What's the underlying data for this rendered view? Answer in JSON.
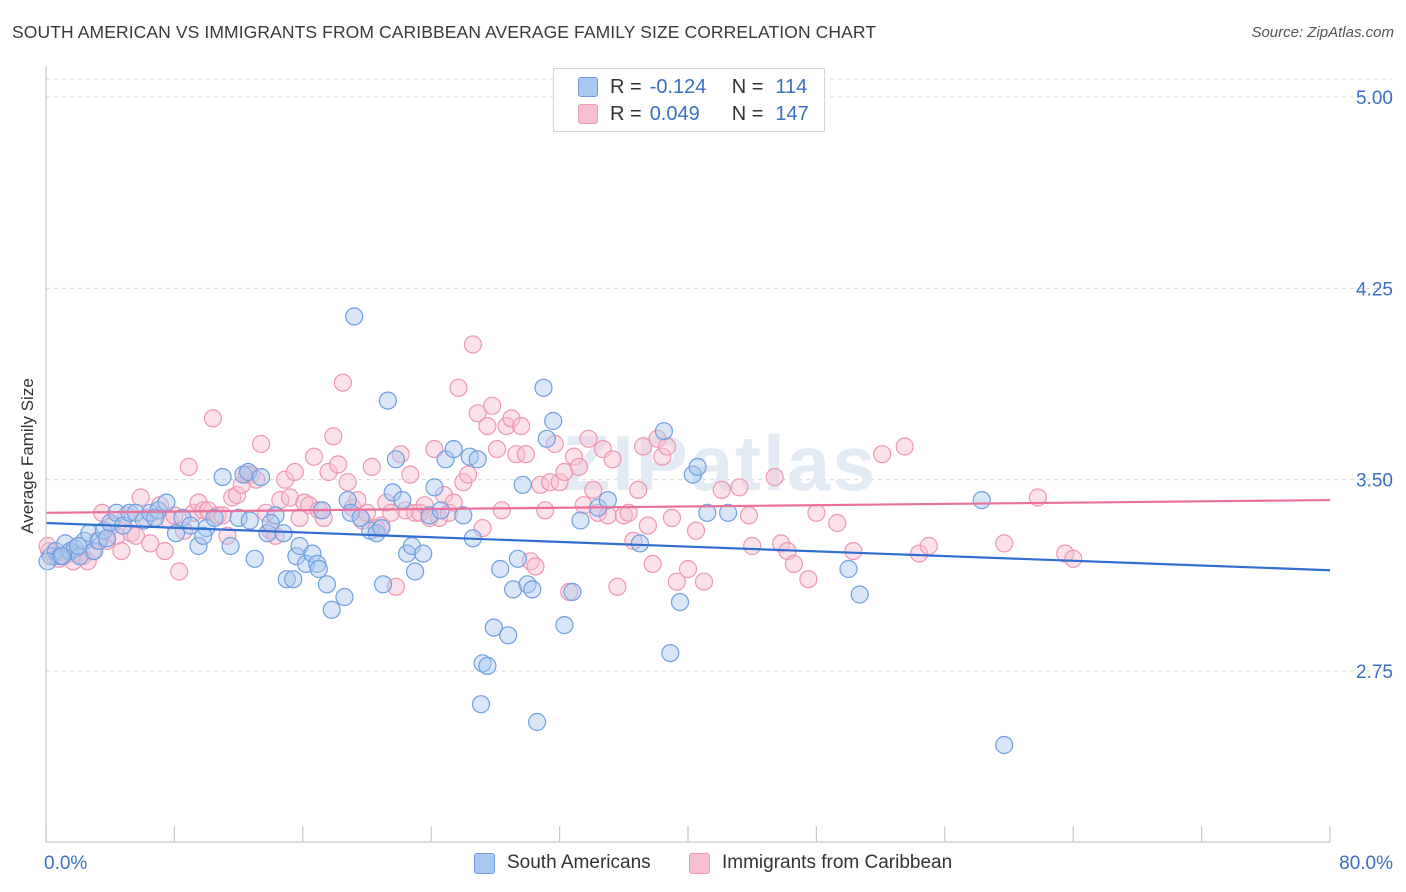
{
  "title": "SOUTH AMERICAN VS IMMIGRANTS FROM CARIBBEAN AVERAGE FAMILY SIZE CORRELATION CHART",
  "source": "Source: ZipAtlas.com",
  "watermark": "ZIPatlas",
  "legend": {
    "rows": [
      {
        "r_label": "R =",
        "r_value": "-0.124",
        "n_label": "N =",
        "n_value": "114"
      },
      {
        "r_label": "R =",
        "r_value": "0.049",
        "n_label": "N =",
        "n_value": "147"
      }
    ]
  },
  "bottom_legend": [
    "South Americans",
    "Immigrants from Caribbean"
  ],
  "colors": {
    "blue_fill": "#a9c8f0",
    "blue_stroke": "#6f9fe0",
    "blue_line": "#2f6fd0",
    "pink_fill": "#f7bfd0",
    "pink_stroke": "#ee97b3",
    "pink_line": "#e8709a",
    "axis_text": "#3a6fc4",
    "grid": "#d8d8d8"
  },
  "chart_data": {
    "type": "scatter",
    "title": "SOUTH AMERICAN VS IMMIGRANTS FROM CARIBBEAN AVERAGE FAMILY SIZE CORRELATION CHART",
    "xlabel": "",
    "ylabel": "Average Family Size",
    "xlim": [
      0,
      80
    ],
    "ylim": [
      2.0,
      5.05
    ],
    "x_tick_labels": [
      "0.0%",
      "80.0%"
    ],
    "y_ticks": [
      2.75,
      3.5,
      4.25,
      5.0
    ],
    "y_tick_labels": [
      "2.75",
      "3.50",
      "4.25",
      "5.00"
    ],
    "grid": true,
    "legend_position": "top-center",
    "series": [
      {
        "name": "South Americans",
        "R": -0.124,
        "N": 114,
        "trend": {
          "x": [
            0,
            80
          ],
          "y": [
            3.33,
            3.145
          ]
        },
        "points": [
          [
            0.3,
            3.2
          ],
          [
            0.6,
            3.22
          ],
          [
            0.9,
            3.2
          ],
          [
            1.2,
            3.25
          ],
          [
            1.5,
            3.22
          ],
          [
            1.8,
            3.23
          ],
          [
            2.1,
            3.2
          ],
          [
            2.4,
            3.26
          ],
          [
            2.7,
            3.29
          ],
          [
            3.0,
            3.22
          ],
          [
            3.3,
            3.26
          ],
          [
            3.6,
            3.3
          ],
          [
            4.0,
            3.33
          ],
          [
            4.4,
            3.37
          ],
          [
            4.8,
            3.32
          ],
          [
            5.2,
            3.37
          ],
          [
            5.6,
            3.37
          ],
          [
            6.1,
            3.34
          ],
          [
            6.5,
            3.37
          ],
          [
            7.0,
            3.38
          ],
          [
            7.5,
            3.41
          ],
          [
            8.1,
            3.29
          ],
          [
            8.5,
            3.35
          ],
          [
            9.0,
            3.32
          ],
          [
            9.5,
            3.24
          ],
          [
            10.0,
            3.31
          ],
          [
            10.5,
            3.35
          ],
          [
            11.0,
            3.51
          ],
          [
            11.5,
            3.24
          ],
          [
            12.0,
            3.35
          ],
          [
            12.3,
            3.52
          ],
          [
            12.6,
            3.53
          ],
          [
            13.0,
            3.19
          ],
          [
            13.4,
            3.51
          ],
          [
            13.8,
            3.29
          ],
          [
            14.3,
            3.36
          ],
          [
            14.8,
            3.29
          ],
          [
            15.0,
            3.11
          ],
          [
            15.4,
            3.11
          ],
          [
            15.6,
            3.2
          ],
          [
            15.8,
            3.24
          ],
          [
            16.2,
            3.17
          ],
          [
            16.6,
            3.21
          ],
          [
            16.9,
            3.17
          ],
          [
            17.2,
            3.38
          ],
          [
            17.5,
            3.09
          ],
          [
            17.8,
            2.99
          ],
          [
            18.6,
            3.04
          ],
          [
            18.8,
            3.42
          ],
          [
            19.0,
            3.37
          ],
          [
            19.2,
            4.14
          ],
          [
            19.6,
            3.35
          ],
          [
            20.2,
            3.3
          ],
          [
            20.6,
            3.29
          ],
          [
            20.9,
            3.31
          ],
          [
            21.0,
            3.09
          ],
          [
            21.3,
            3.81
          ],
          [
            21.6,
            3.45
          ],
          [
            21.8,
            3.58
          ],
          [
            22.2,
            3.42
          ],
          [
            22.5,
            3.21
          ],
          [
            22.8,
            3.24
          ],
          [
            23.0,
            3.14
          ],
          [
            23.5,
            3.21
          ],
          [
            23.9,
            3.36
          ],
          [
            24.2,
            3.47
          ],
          [
            24.6,
            3.38
          ],
          [
            24.9,
            3.58
          ],
          [
            25.4,
            3.62
          ],
          [
            26.0,
            3.36
          ],
          [
            26.4,
            3.59
          ],
          [
            26.6,
            3.27
          ],
          [
            26.9,
            3.58
          ],
          [
            27.2,
            2.78
          ],
          [
            27.5,
            2.77
          ],
          [
            27.1,
            2.62
          ],
          [
            27.9,
            2.92
          ],
          [
            28.3,
            3.15
          ],
          [
            28.8,
            2.89
          ],
          [
            29.1,
            3.07
          ],
          [
            29.4,
            3.19
          ],
          [
            29.7,
            3.48
          ],
          [
            30.0,
            3.09
          ],
          [
            30.3,
            3.07
          ],
          [
            30.6,
            2.55
          ],
          [
            31.2,
            3.66
          ],
          [
            31.0,
            3.86
          ],
          [
            31.6,
            3.73
          ],
          [
            32.3,
            2.93
          ],
          [
            32.8,
            3.06
          ],
          [
            33.3,
            3.34
          ],
          [
            34.4,
            3.39
          ],
          [
            35.0,
            3.42
          ],
          [
            37.0,
            3.25
          ],
          [
            38.5,
            3.69
          ],
          [
            38.9,
            2.82
          ],
          [
            39.5,
            3.02
          ],
          [
            40.3,
            3.52
          ],
          [
            40.6,
            3.55
          ],
          [
            41.2,
            3.37
          ],
          [
            42.5,
            3.37
          ],
          [
            50.0,
            3.15
          ],
          [
            50.7,
            3.05
          ],
          [
            58.3,
            3.42
          ],
          [
            59.7,
            2.46
          ],
          [
            0.1,
            3.18
          ],
          [
            1.0,
            3.2
          ],
          [
            2.0,
            3.24
          ],
          [
            3.8,
            3.27
          ],
          [
            6.8,
            3.35
          ],
          [
            9.8,
            3.28
          ],
          [
            14.0,
            3.33
          ],
          [
            12.7,
            3.34
          ],
          [
            17.0,
            3.15
          ]
        ]
      },
      {
        "name": "Immigrants from Caribbean",
        "R": 0.049,
        "N": 147,
        "trend": {
          "x": [
            0,
            80
          ],
          "y": [
            3.37,
            3.42
          ]
        },
        "points": [
          [
            0.2,
            3.22
          ],
          [
            0.5,
            3.2
          ],
          [
            0.8,
            3.19
          ],
          [
            1.1,
            3.2
          ],
          [
            1.4,
            3.21
          ],
          [
            1.7,
            3.18
          ],
          [
            2.0,
            3.21
          ],
          [
            2.3,
            3.2
          ],
          [
            2.6,
            3.18
          ],
          [
            2.9,
            3.22
          ],
          [
            3.2,
            3.26
          ],
          [
            3.5,
            3.37
          ],
          [
            3.8,
            3.26
          ],
          [
            4.1,
            3.32
          ],
          [
            4.4,
            3.28
          ],
          [
            4.7,
            3.22
          ],
          [
            5.0,
            3.36
          ],
          [
            5.3,
            3.29
          ],
          [
            5.6,
            3.28
          ],
          [
            5.9,
            3.43
          ],
          [
            6.2,
            3.35
          ],
          [
            6.5,
            3.25
          ],
          [
            6.8,
            3.35
          ],
          [
            7.1,
            3.4
          ],
          [
            7.4,
            3.22
          ],
          [
            7.7,
            3.34
          ],
          [
            8.0,
            3.36
          ],
          [
            8.3,
            3.14
          ],
          [
            8.6,
            3.3
          ],
          [
            8.9,
            3.55
          ],
          [
            9.2,
            3.37
          ],
          [
            9.5,
            3.41
          ],
          [
            9.8,
            3.38
          ],
          [
            10.1,
            3.38
          ],
          [
            10.4,
            3.74
          ],
          [
            10.7,
            3.36
          ],
          [
            11.0,
            3.36
          ],
          [
            11.3,
            3.28
          ],
          [
            11.6,
            3.43
          ],
          [
            11.9,
            3.44
          ],
          [
            12.2,
            3.48
          ],
          [
            12.5,
            3.52
          ],
          [
            12.8,
            3.52
          ],
          [
            13.1,
            3.5
          ],
          [
            13.4,
            3.64
          ],
          [
            13.7,
            3.37
          ],
          [
            14.0,
            3.3
          ],
          [
            14.3,
            3.28
          ],
          [
            14.6,
            3.42
          ],
          [
            14.9,
            3.5
          ],
          [
            15.2,
            3.43
          ],
          [
            15.5,
            3.53
          ],
          [
            15.8,
            3.35
          ],
          [
            16.1,
            3.41
          ],
          [
            16.4,
            3.4
          ],
          [
            16.7,
            3.59
          ],
          [
            17.0,
            3.38
          ],
          [
            17.3,
            3.35
          ],
          [
            17.6,
            3.53
          ],
          [
            17.9,
            3.67
          ],
          [
            18.2,
            3.56
          ],
          [
            18.5,
            3.88
          ],
          [
            18.8,
            3.49
          ],
          [
            19.1,
            3.39
          ],
          [
            19.4,
            3.42
          ],
          [
            19.7,
            3.34
          ],
          [
            20.0,
            3.37
          ],
          [
            20.3,
            3.55
          ],
          [
            20.6,
            3.31
          ],
          [
            20.9,
            3.32
          ],
          [
            21.2,
            3.41
          ],
          [
            21.5,
            3.37
          ],
          [
            21.8,
            3.08
          ],
          [
            22.1,
            3.6
          ],
          [
            22.4,
            3.38
          ],
          [
            22.7,
            3.52
          ],
          [
            23.0,
            3.37
          ],
          [
            23.3,
            3.37
          ],
          [
            23.6,
            3.4
          ],
          [
            23.9,
            3.35
          ],
          [
            24.2,
            3.62
          ],
          [
            24.5,
            3.35
          ],
          [
            24.8,
            3.44
          ],
          [
            25.1,
            3.37
          ],
          [
            25.4,
            3.41
          ],
          [
            25.7,
            3.86
          ],
          [
            26.0,
            3.49
          ],
          [
            26.3,
            3.52
          ],
          [
            26.6,
            4.03
          ],
          [
            26.9,
            3.76
          ],
          [
            27.2,
            3.31
          ],
          [
            27.5,
            3.71
          ],
          [
            27.8,
            3.79
          ],
          [
            28.1,
            3.62
          ],
          [
            28.4,
            3.38
          ],
          [
            28.7,
            3.71
          ],
          [
            29.0,
            3.74
          ],
          [
            29.3,
            3.6
          ],
          [
            29.6,
            3.71
          ],
          [
            29.9,
            3.6
          ],
          [
            30.2,
            3.18
          ],
          [
            30.5,
            3.16
          ],
          [
            30.8,
            3.48
          ],
          [
            31.1,
            3.38
          ],
          [
            31.4,
            3.49
          ],
          [
            31.7,
            3.64
          ],
          [
            32.0,
            3.49
          ],
          [
            32.3,
            3.53
          ],
          [
            32.6,
            3.06
          ],
          [
            32.9,
            3.59
          ],
          [
            33.2,
            3.55
          ],
          [
            33.5,
            3.4
          ],
          [
            33.8,
            3.66
          ],
          [
            34.1,
            3.46
          ],
          [
            34.4,
            3.37
          ],
          [
            34.7,
            3.62
          ],
          [
            35.0,
            3.36
          ],
          [
            35.3,
            3.58
          ],
          [
            35.6,
            3.08
          ],
          [
            36.0,
            3.36
          ],
          [
            36.3,
            3.37
          ],
          [
            36.6,
            3.26
          ],
          [
            36.9,
            3.46
          ],
          [
            37.2,
            3.63
          ],
          [
            37.5,
            3.32
          ],
          [
            37.8,
            3.17
          ],
          [
            38.1,
            3.66
          ],
          [
            38.4,
            3.59
          ],
          [
            38.7,
            3.63
          ],
          [
            39.0,
            3.35
          ],
          [
            39.3,
            3.1
          ],
          [
            40.0,
            3.15
          ],
          [
            40.5,
            3.3
          ],
          [
            41.0,
            3.1
          ],
          [
            42.1,
            3.46
          ],
          [
            43.2,
            3.47
          ],
          [
            43.8,
            3.36
          ],
          [
            44.0,
            3.24
          ],
          [
            45.4,
            3.51
          ],
          [
            45.8,
            3.25
          ],
          [
            46.2,
            3.22
          ],
          [
            46.6,
            3.17
          ],
          [
            47.5,
            3.11
          ],
          [
            48.0,
            3.37
          ],
          [
            49.3,
            3.33
          ],
          [
            50.3,
            3.22
          ],
          [
            52.1,
            3.6
          ],
          [
            53.5,
            3.63
          ],
          [
            54.4,
            3.21
          ],
          [
            55.0,
            3.24
          ],
          [
            59.7,
            3.25
          ],
          [
            61.8,
            3.43
          ],
          [
            63.5,
            3.21
          ],
          [
            64.0,
            3.19
          ],
          [
            0.1,
            3.24
          ]
        ]
      }
    ]
  }
}
